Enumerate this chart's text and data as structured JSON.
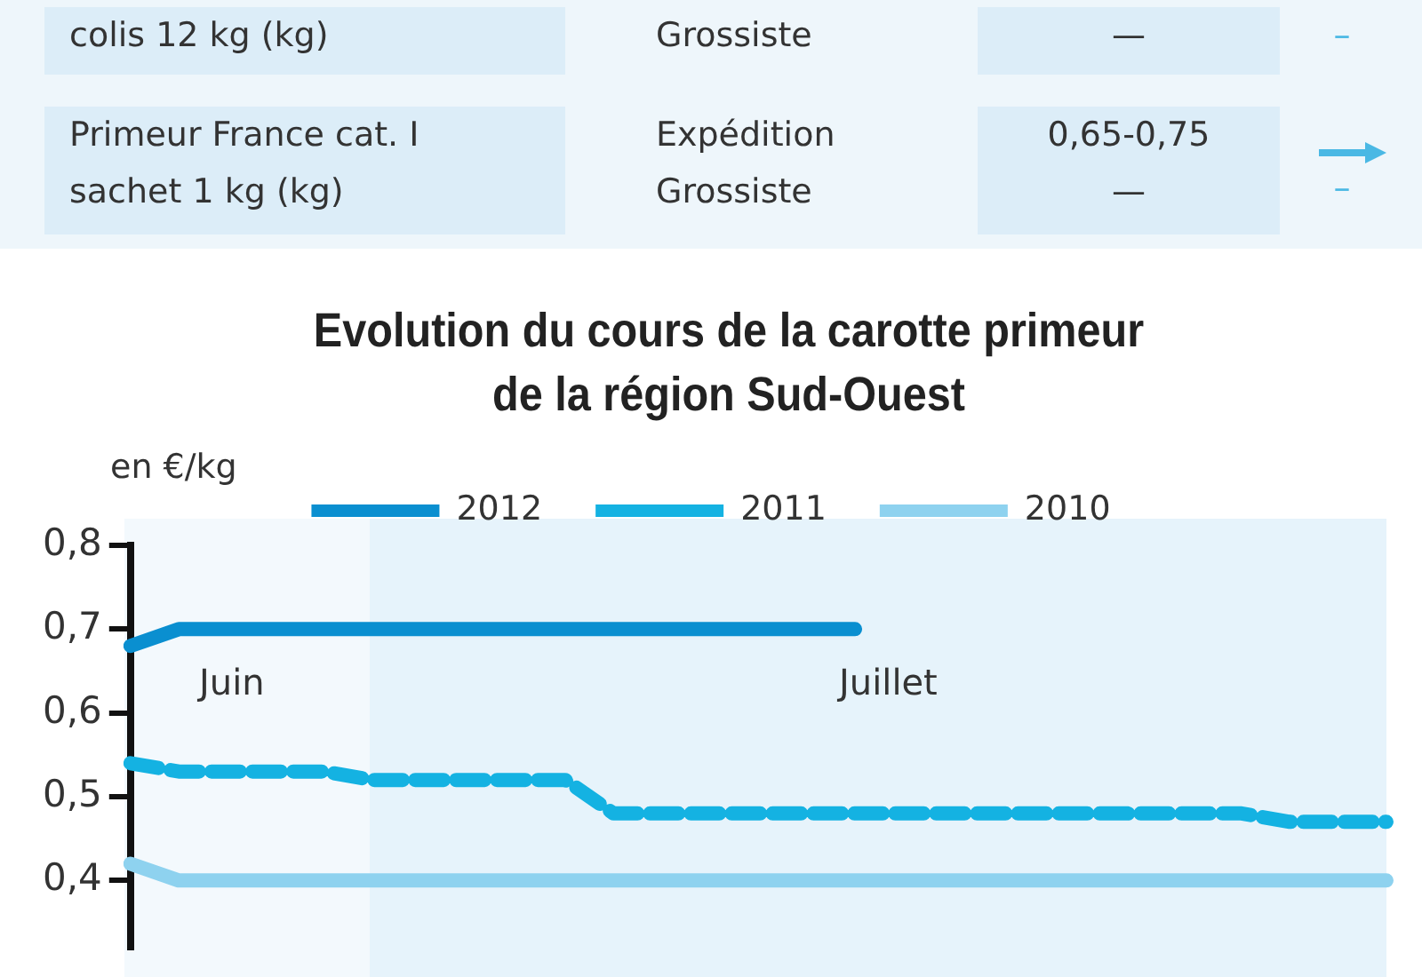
{
  "chart_data": {
    "type": "line",
    "title": "Evolution du cours de la carotte primeur de la région Sud-Ouest",
    "ylabel": "en €/kg",
    "annotations": [
      "colis 12 kg (kg)",
      "Grossiste",
      "—",
      "–",
      "Primeur France cat. I\nsachet 1 kg (kg)",
      "Expédition\nGrossiste",
      "0,65-0,75\n—",
      "–",
      "Juin",
      "Juillet"
    ],
    "categories": [
      null,
      null,
      null,
      null,
      null,
      null,
      null,
      null,
      null,
      null,
      null,
      null,
      null,
      null,
      null,
      null,
      null,
      null,
      null,
      null,
      null,
      null,
      null,
      null,
      null,
      null,
      null
    ],
    "series": [
      {
        "name": "2012",
        "color": "#0a8fd0",
        "line_style": "solid",
        "values": [
          0.68,
          0.7,
          0.7,
          0.7,
          0.7,
          0.7,
          0.7,
          0.7,
          0.7,
          0.7,
          0.7,
          0.7,
          0.7,
          0.7,
          0.7,
          0.7,
          null,
          null,
          null,
          null,
          null,
          null,
          null,
          null,
          null,
          null,
          null
        ]
      },
      {
        "name": "2011",
        "color": "#14b2e2",
        "line_style": "dashed",
        "values": [
          0.54,
          0.53,
          0.53,
          0.53,
          0.53,
          0.52,
          0.52,
          0.52,
          0.52,
          0.52,
          0.48,
          0.48,
          0.48,
          0.48,
          0.48,
          0.48,
          0.48,
          0.48,
          0.48,
          0.48,
          0.48,
          0.48,
          0.48,
          0.48,
          0.47,
          0.47,
          0.47
        ]
      },
      {
        "name": "2010",
        "color": "#8ed2ef",
        "line_style": "solid",
        "values": [
          0.42,
          0.4,
          0.4,
          0.4,
          0.4,
          0.4,
          0.4,
          0.4,
          0.4,
          0.4,
          0.4,
          0.4,
          0.4,
          0.4,
          0.4,
          0.4,
          0.4,
          0.4,
          0.4,
          0.4,
          0.4,
          0.4,
          0.4,
          0.4,
          0.4,
          0.4,
          0.4
        ]
      }
    ],
    "ylim": [
      0.32,
      0.8
    ],
    "yticks": [
      {
        "value": 0.4,
        "label": "0,4"
      },
      {
        "value": 0.5,
        "label": "0,5"
      },
      {
        "value": 0.6,
        "label": "0,6"
      },
      {
        "value": 0.7,
        "label": "0,7"
      },
      {
        "value": 0.8,
        "label": "0,8"
      }
    ],
    "grid": false,
    "legend": "top",
    "marker": "none"
  }
}
